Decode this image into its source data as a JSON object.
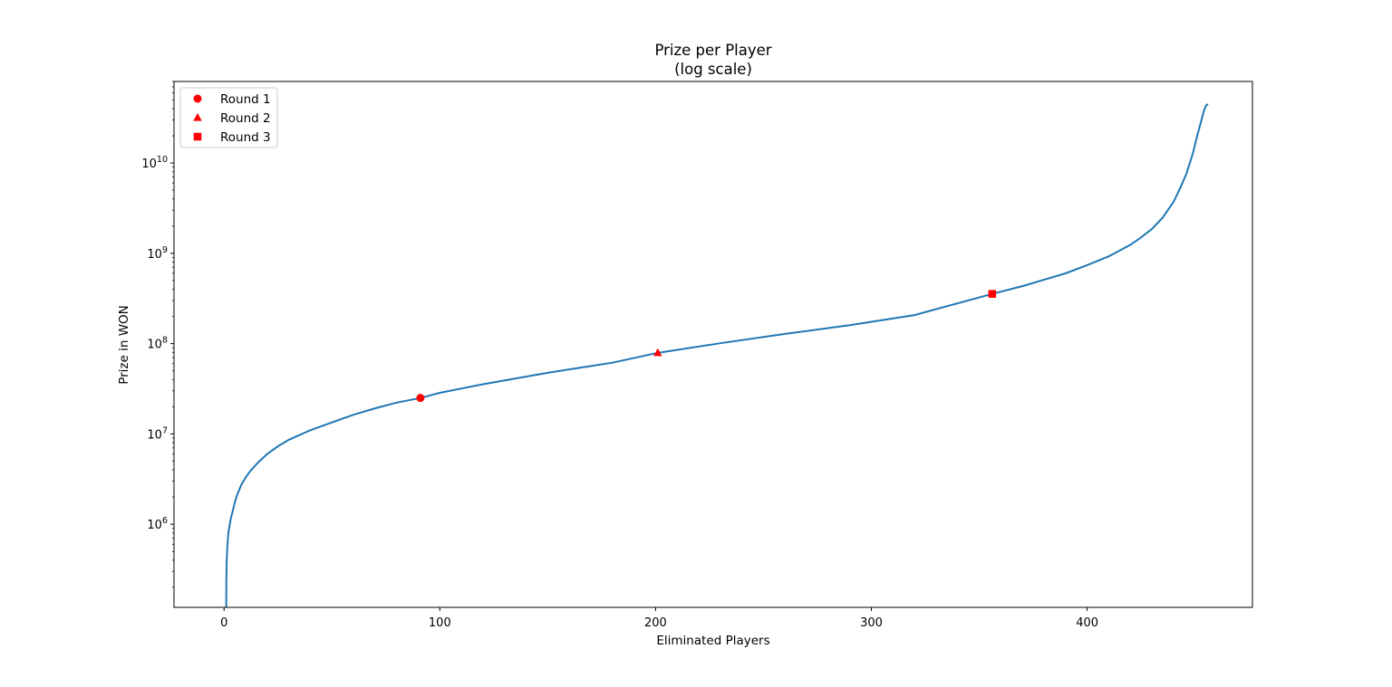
{
  "chart_data": {
    "type": "line",
    "title": "Prize per Player",
    "subtitle": "(log scale)",
    "xlabel": "Eliminated Players",
    "ylabel": "Prize in WON",
    "xlim": [
      -23.2,
      476.6
    ],
    "ylim": [
      120000,
      80000000000
    ],
    "y_scale": "log",
    "grid": false,
    "legend_position": "top-left",
    "x_ticks": [
      0,
      100,
      200,
      300,
      400
    ],
    "y_ticks": [
      1000000,
      10000000,
      100000000,
      1000000000,
      10000000000
    ],
    "y_tick_exponents": [
      "6",
      "7",
      "8",
      "9",
      "10"
    ],
    "y_tick_base": "10",
    "line_color": "#1f77b4",
    "marker_color": "#ff0000",
    "series": [
      {
        "x": [
          1,
          1.05,
          1.2,
          1.5,
          2,
          3,
          4,
          5,
          6,
          8,
          10,
          12,
          15,
          20,
          25,
          30,
          40,
          50,
          60,
          70,
          80,
          91,
          100,
          120,
          150,
          180,
          201,
          230,
          260,
          290,
          320,
          356,
          370,
          380,
          390,
          400,
          410,
          420,
          425,
          430,
          435,
          440,
          443,
          446,
          449,
          451,
          453,
          454,
          455,
          456
        ],
        "y": [
          120000,
          220000,
          380000,
          560000,
          800000,
          1120000,
          1400000,
          1740000,
          2090000,
          2730000,
          3290000,
          3840000,
          4620000,
          6000000,
          7300000,
          8600000,
          11000000,
          13400000,
          16300000,
          19200000,
          22200000,
          25000000,
          28500000,
          35500000,
          47500000,
          61500000,
          79000000,
          101000000,
          128000000,
          160000000,
          207000000,
          355000000,
          433000000,
          510000000,
          600000000,
          740000000,
          925000000,
          1240000000,
          1500000000,
          1860000000,
          2480000000,
          3700000000,
          5200000000,
          7600000000,
          12800000000,
          20000000000,
          30000000000,
          37000000000,
          43000000000,
          45000000000
        ]
      }
    ],
    "markers": [
      {
        "name": "Round 1",
        "shape": "circle",
        "x": 91,
        "y": 25000000
      },
      {
        "name": "Round 2",
        "shape": "triangle",
        "x": 201,
        "y": 79000000
      },
      {
        "name": "Round 3",
        "shape": "square",
        "x": 356,
        "y": 355000000
      }
    ]
  }
}
